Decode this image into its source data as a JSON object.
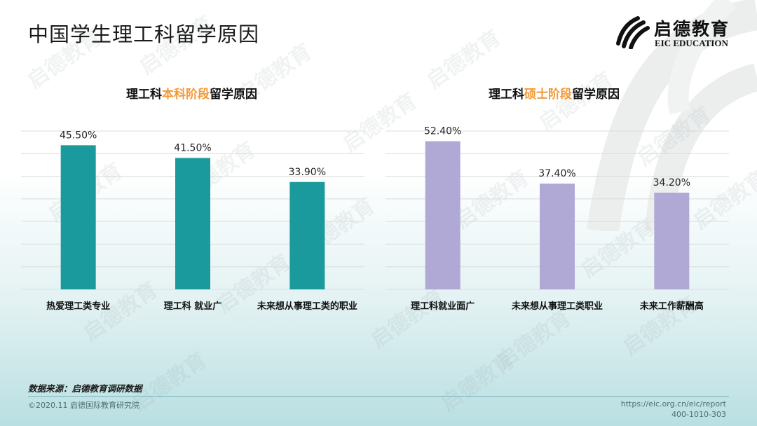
{
  "page_title": "中国学生理工科留学原因",
  "logo": {
    "cn": "启德教育",
    "en": "EIC EDUCATION",
    "watermark": "启德教育"
  },
  "source_note": "数据来源：启德教育调研数据",
  "copyright": "©2020.11 启德国际教育研究院",
  "footer_url": "https://eic.org.cn/eic/report",
  "footer_phone": "400-1010-303",
  "chart_data": [
    {
      "type": "bar",
      "title_prefix": "理工科",
      "title_highlight": "本科阶段",
      "title_suffix": "留学原因",
      "categories": [
        "热爱理工类专业",
        "理工科 就业广",
        "未来想从事理工类的职业"
      ],
      "values": [
        45.5,
        41.5,
        33.9
      ],
      "labels": [
        "45.50%",
        "41.50%",
        "33.90%"
      ],
      "ylim": [
        0,
        50
      ],
      "grid": true,
      "color": "#1a9a9c",
      "highlight_color": "#f29a3a"
    },
    {
      "type": "bar",
      "title_prefix": "理工科",
      "title_highlight": "硕士阶段",
      "title_suffix": "留学原因",
      "categories": [
        "理工科就业面广",
        "未来想从事理工类职业",
        "未来工作薪酬高"
      ],
      "values": [
        52.4,
        37.4,
        34.2
      ],
      "labels": [
        "52.40%",
        "37.40%",
        "34.20%"
      ],
      "ylim": [
        0,
        56
      ],
      "grid": true,
      "color": "#b0a9d6",
      "highlight_color": "#f29a3a"
    }
  ]
}
